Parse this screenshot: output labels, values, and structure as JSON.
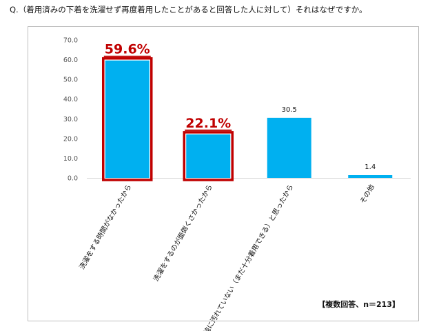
{
  "question": "Q.（着用済みの下着を洗濯せず再度着用したことがあると回答した人に対して）それはなぜですか。",
  "footnote": "【複数回答、n＝213】",
  "colors": {
    "bar": "#00b0f0",
    "highlight": "#c00000",
    "grid": "#d9d9d9",
    "axis_text": "#555555"
  },
  "chart_data": {
    "type": "bar",
    "categories": [
      "洗濯をする時間がなかったから",
      "洗濯をするのが面倒くさかったから",
      "単純に汚れていない（まだ十分着用できる）と思ったから",
      "その他"
    ],
    "values": [
      59.6,
      22.1,
      30.5,
      1.4
    ],
    "value_labels": [
      "59.6%",
      "22.1%",
      "30.5",
      "1.4"
    ],
    "highlighted": [
      true,
      true,
      false,
      false
    ],
    "yticks": [
      "0.0",
      "10.0",
      "20.0",
      "30.0",
      "40.0",
      "50.0",
      "60.0",
      "70.0"
    ],
    "ylim": [
      0,
      70
    ],
    "grid": false,
    "title": "",
    "xlabel": "",
    "ylabel": ""
  }
}
